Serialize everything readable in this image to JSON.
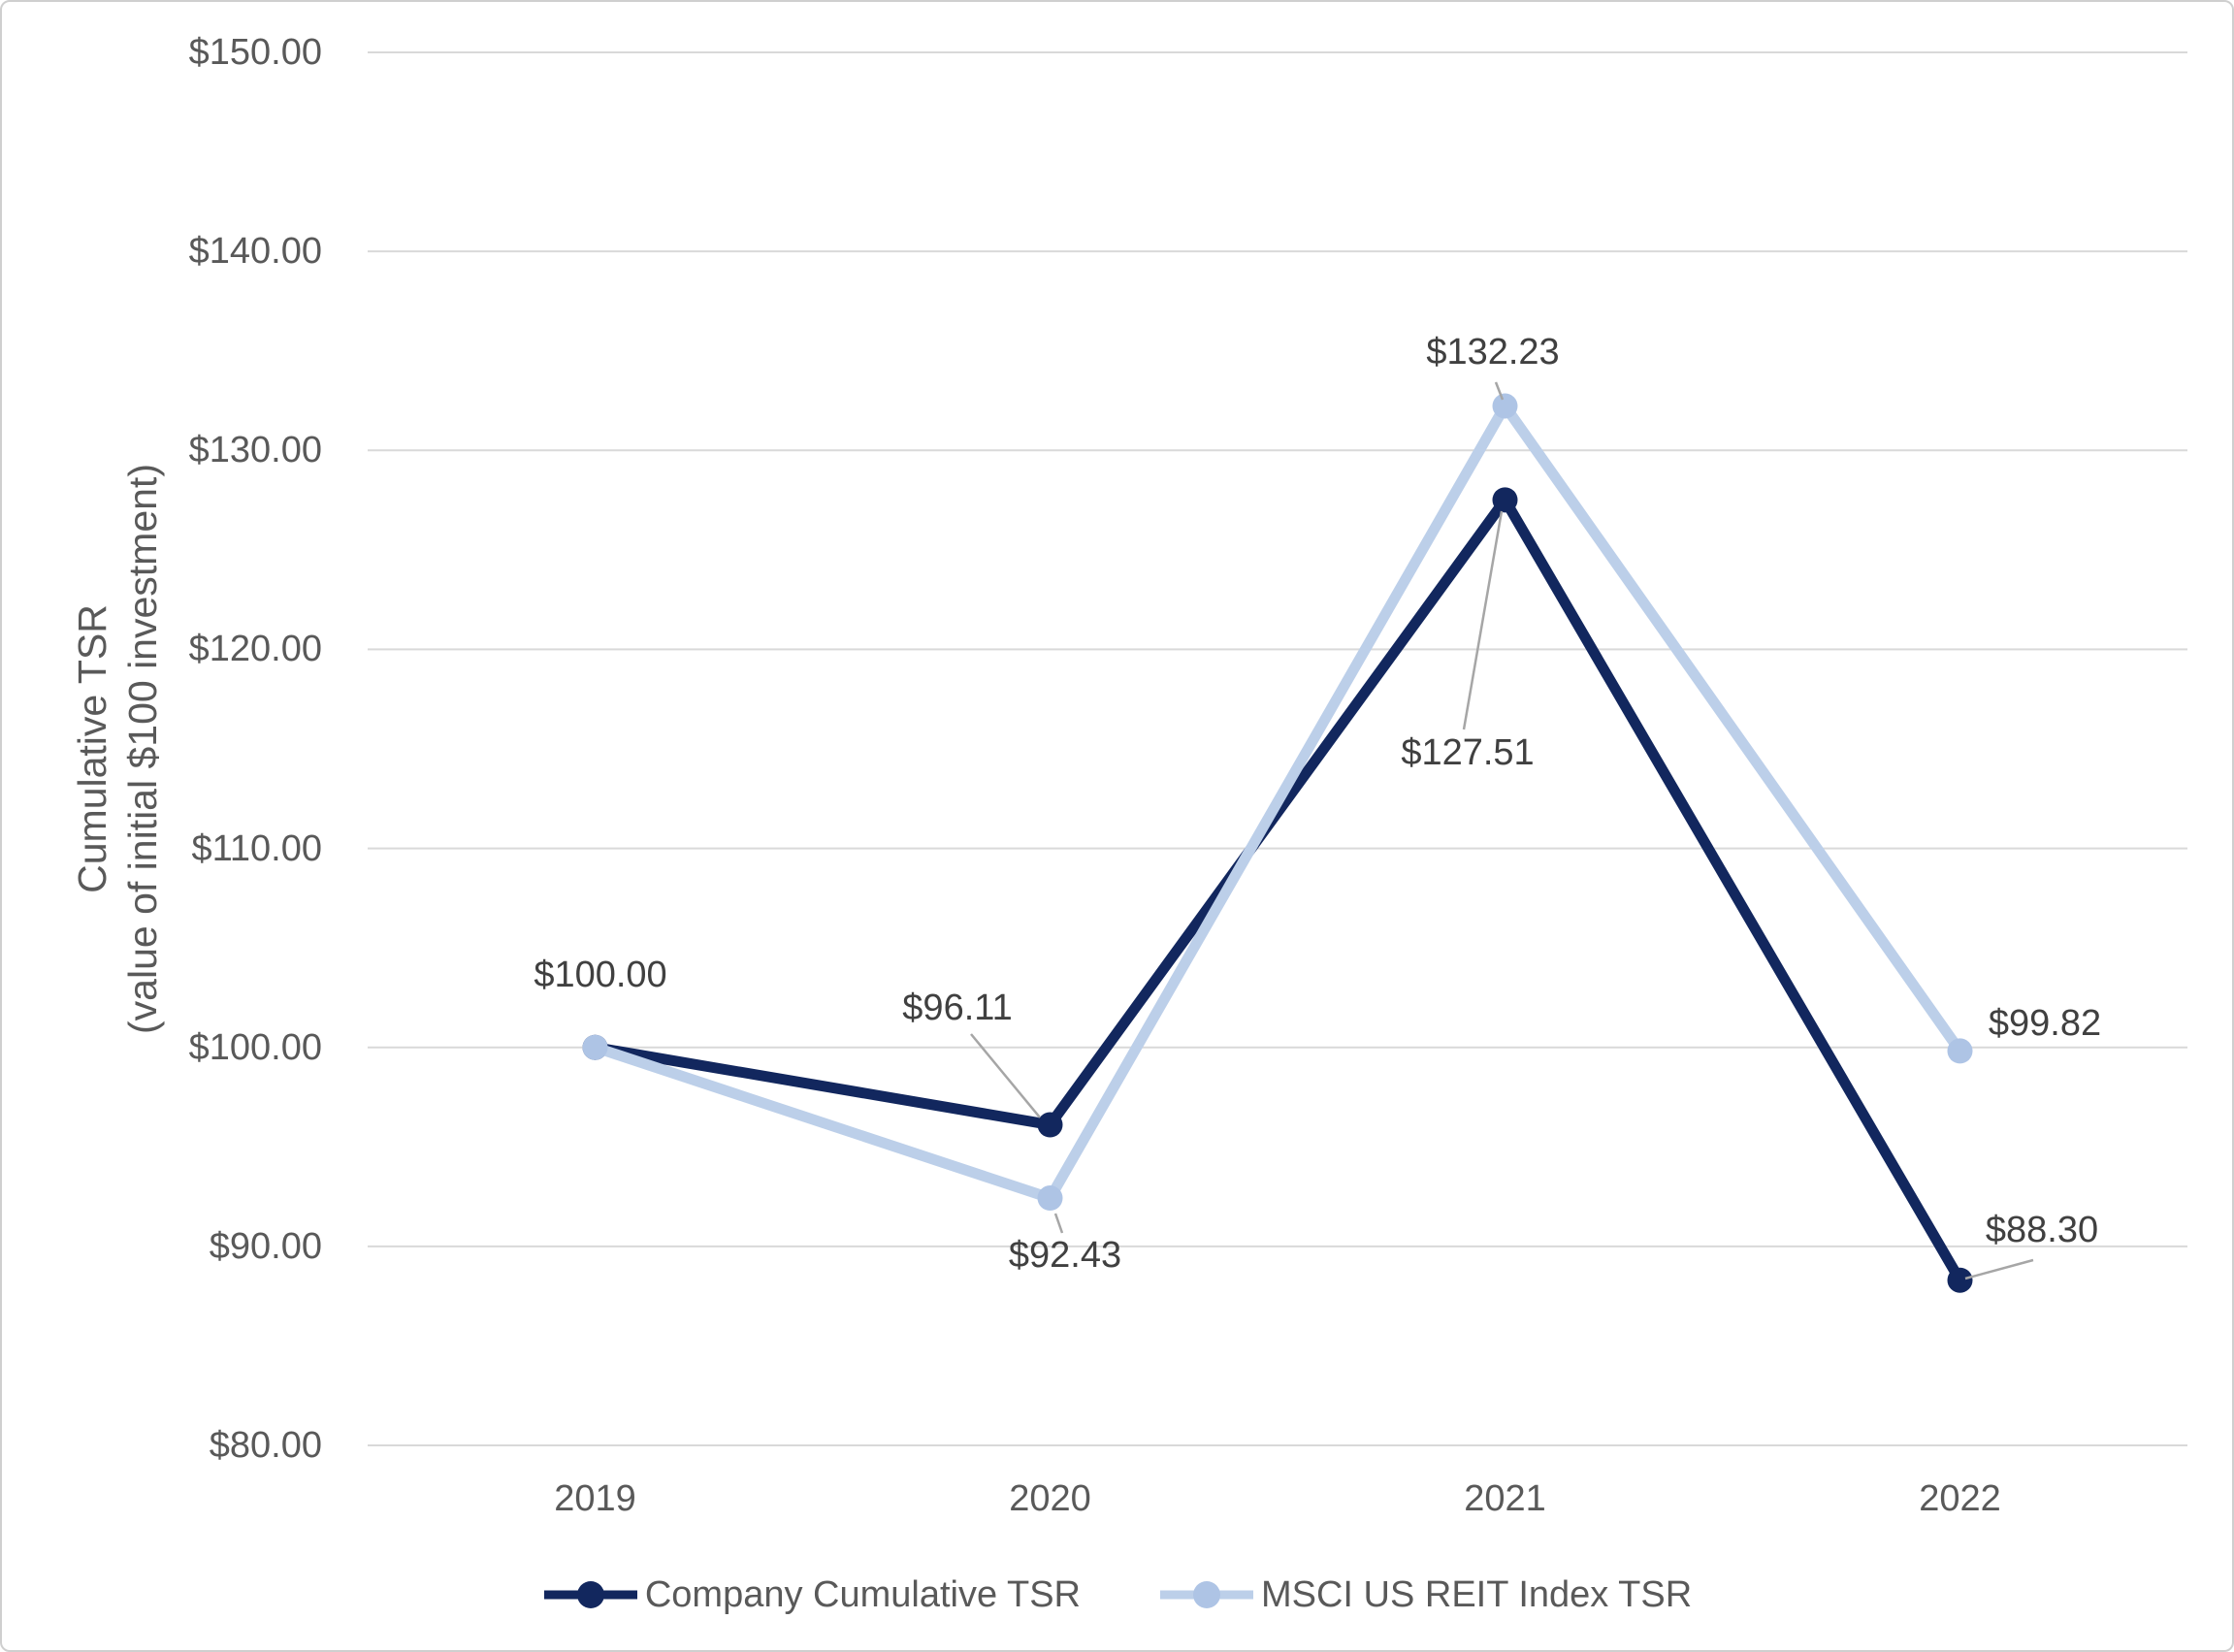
{
  "chart_data": {
    "type": "line",
    "categories": [
      "2019",
      "2020",
      "2021",
      "2022"
    ],
    "series": [
      {
        "name": "Company Cumulative TSR",
        "color": "#12275e",
        "marker_color": "#12275e",
        "values": [
          100.0,
          96.11,
          127.51,
          88.3
        ],
        "point_labels": [
          "$100.00",
          "$96.11",
          "$127.51",
          "$88.30"
        ]
      },
      {
        "name": "MSCI US REIT Index TSR",
        "color": "#bccfe9",
        "marker_color": "#aec4e5",
        "values": [
          100.0,
          92.43,
          132.23,
          99.82
        ],
        "point_labels": [
          null,
          "$92.43",
          "$132.23",
          "$99.82"
        ]
      }
    ],
    "title": "",
    "ylabel_line1": "Cumulative TSR",
    "ylabel_line2": "(value of initial $100 investment)",
    "xlabel": "",
    "ylim": [
      80,
      150
    ],
    "yticks": [
      {
        "value": 150,
        "label": "$150.00"
      },
      {
        "value": 140,
        "label": "$140.00"
      },
      {
        "value": 130,
        "label": "$130.00"
      },
      {
        "value": 120,
        "label": "$120.00"
      },
      {
        "value": 110,
        "label": "$110.00"
      },
      {
        "value": 100,
        "label": "$100.00"
      },
      {
        "value": 90,
        "label": "$90.00"
      },
      {
        "value": 80,
        "label": "$80.00"
      }
    ],
    "grid": true,
    "legend_position": "bottom"
  },
  "colors": {
    "gridline": "#d9d9d9",
    "axis_text": "#595959",
    "data_label_text": "#404040",
    "leader_line": "#a6a6a6",
    "border": "#cfcfcf",
    "background": "#ffffff"
  }
}
